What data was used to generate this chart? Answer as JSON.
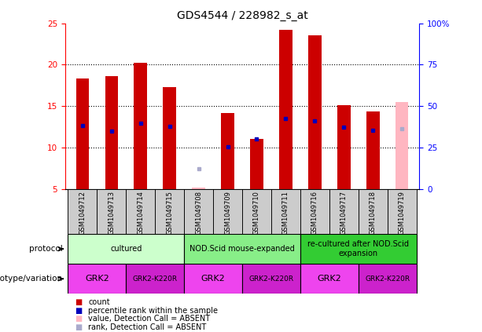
{
  "title": "GDS4544 / 228982_s_at",
  "samples": [
    "GSM1049712",
    "GSM1049713",
    "GSM1049714",
    "GSM1049715",
    "GSM1049708",
    "GSM1049709",
    "GSM1049710",
    "GSM1049711",
    "GSM1049716",
    "GSM1049717",
    "GSM1049718",
    "GSM1049719"
  ],
  "count_values": [
    18.3,
    18.6,
    20.2,
    17.3,
    null,
    14.2,
    11.1,
    24.2,
    23.5,
    15.1,
    14.4,
    null
  ],
  "rank_values": [
    12.7,
    12.0,
    13.0,
    12.6,
    null,
    10.1,
    11.1,
    13.5,
    13.2,
    12.5,
    12.1,
    12.0
  ],
  "absent_count": [
    null,
    null,
    null,
    null,
    5.2,
    null,
    null,
    null,
    null,
    null,
    null,
    15.5
  ],
  "absent_rank": [
    null,
    null,
    null,
    null,
    7.5,
    null,
    null,
    null,
    null,
    null,
    null,
    12.3
  ],
  "ylim_left": [
    5,
    25
  ],
  "yticks_left": [
    5,
    10,
    15,
    20,
    25
  ],
  "yticks_right": [
    0,
    25,
    50,
    75,
    100
  ],
  "ylim_right": [
    0,
    100
  ],
  "bar_color_red": "#cc0000",
  "bar_color_blue": "#0000bb",
  "bar_color_pink": "#ffb6c1",
  "bar_color_lightblue": "#aaaacc",
  "bg_color": "#ffffff",
  "sample_bg_color": "#cccccc",
  "protocol_groups": [
    {
      "label": "cultured",
      "start": 0,
      "end": 3,
      "color": "#ccffcc"
    },
    {
      "label": "NOD.Scid mouse-expanded",
      "start": 4,
      "end": 7,
      "color": "#88ee88"
    },
    {
      "label": "re-cultured after NOD.Scid\nexpansion",
      "start": 8,
      "end": 11,
      "color": "#33cc33"
    }
  ],
  "genotype_groups": [
    {
      "label": "GRK2",
      "start": 0,
      "end": 1,
      "color": "#ee44ee",
      "fontsize": 8
    },
    {
      "label": "GRK2-K220R",
      "start": 2,
      "end": 3,
      "color": "#cc22cc",
      "fontsize": 6.5
    },
    {
      "label": "GRK2",
      "start": 4,
      "end": 5,
      "color": "#ee44ee",
      "fontsize": 8
    },
    {
      "label": "GRK2-K220R",
      "start": 6,
      "end": 7,
      "color": "#cc22cc",
      "fontsize": 6.5
    },
    {
      "label": "GRK2",
      "start": 8,
      "end": 9,
      "color": "#ee44ee",
      "fontsize": 8
    },
    {
      "label": "GRK2-K220R",
      "start": 10,
      "end": 11,
      "color": "#cc22cc",
      "fontsize": 6.5
    }
  ],
  "legend_items": [
    {
      "label": "count",
      "color": "#cc0000"
    },
    {
      "label": "percentile rank within the sample",
      "color": "#0000bb"
    },
    {
      "label": "value, Detection Call = ABSENT",
      "color": "#ffb6c1"
    },
    {
      "label": "rank, Detection Call = ABSENT",
      "color": "#aaaacc"
    }
  ],
  "bar_width": 0.45
}
